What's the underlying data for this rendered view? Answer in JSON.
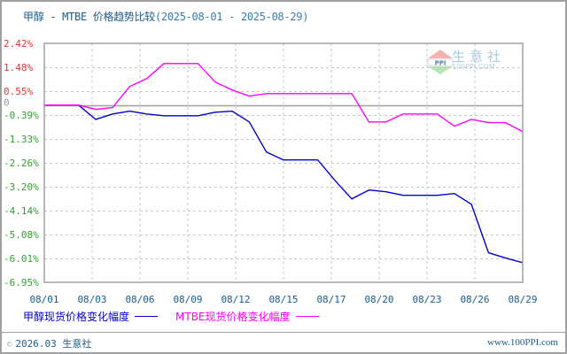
{
  "title": {
    "main": "甲醇 - MTBE 价格趋势比较",
    "range": "(2025-08-01 - 2025-08-29)"
  },
  "watermark": {
    "brand": "生意社",
    "sub": "100PPI.COM",
    "logo_text": "PPI"
  },
  "legend": {
    "items": [
      {
        "label": "甲醇现货价格变化幅度",
        "color": "#0000cc"
      },
      {
        "label": "MTBE现货价格变化幅度",
        "color": "#ff00ff"
      }
    ]
  },
  "footer": {
    "copyright_symbol": "©",
    "left": "2026.03 生意社",
    "right": "www.100PPI.com"
  },
  "colors": {
    "positive_tick": "#e83030",
    "negative_tick": "#30a030",
    "zero_tick": "#999999",
    "grid": "#c8c8c8",
    "axis": "#a0a0a0",
    "series_methanol": "#0000cc",
    "series_mtbe": "#ff00ff"
  },
  "chart_data": {
    "type": "line",
    "title": "甲醇 - MTBE 价格趋势比较(2025-08-01 - 2025-08-29)",
    "xlabel": "",
    "ylabel": "",
    "ylim": [
      -6.95,
      2.42
    ],
    "grid": true,
    "legend_position": "bottom",
    "y_ticks": [
      "2.42%",
      "1.48%",
      "0.55%",
      "0",
      "-0.39%",
      "-1.33%",
      "-2.26%",
      "-3.20%",
      "-4.14%",
      "-5.08%",
      "-6.01%",
      "-6.95%"
    ],
    "y_tick_values": [
      2.42,
      1.48,
      0.55,
      0,
      -0.39,
      -1.33,
      -2.26,
      -3.2,
      -4.14,
      -5.08,
      -6.01,
      -6.95
    ],
    "x_ticks": [
      "08/01",
      "08/03",
      "08/06",
      "08/09",
      "08/12",
      "08/15",
      "08/17",
      "08/20",
      "08/23",
      "08/26",
      "08/29"
    ],
    "x": [
      "08/01",
      "08/02",
      "08/03",
      "08/04",
      "08/05",
      "08/06",
      "08/07",
      "08/08",
      "08/09",
      "08/10",
      "08/11",
      "08/12",
      "08/13",
      "08/14",
      "08/15",
      "08/16",
      "08/17",
      "08/18",
      "08/19",
      "08/20",
      "08/21",
      "08/22",
      "08/23",
      "08/24",
      "08/25",
      "08/26",
      "08/27",
      "08/28",
      "08/29"
    ],
    "series": [
      {
        "name": "甲醇现货价格变化幅度",
        "color": "#0000cc",
        "values": [
          0,
          0,
          0,
          -0.56,
          -0.35,
          -0.24,
          -0.35,
          -0.42,
          -0.42,
          -0.42,
          -0.28,
          -0.24,
          -0.66,
          -1.84,
          -2.15,
          -2.15,
          -2.15,
          -2.95,
          -3.68,
          -3.33,
          -3.4,
          -3.54,
          -3.54,
          -3.54,
          -3.47,
          -3.89,
          -5.79,
          -6.0,
          -6.18
        ]
      },
      {
        "name": "MTBE现货价格变化幅度",
        "color": "#ff00ff",
        "values": [
          0,
          0,
          0,
          -0.17,
          -0.1,
          0.73,
          1.04,
          1.63,
          1.63,
          1.63,
          0.9,
          0.59,
          0.35,
          0.45,
          0.45,
          0.45,
          0.45,
          0.45,
          0.45,
          -0.66,
          -0.66,
          -0.35,
          -0.35,
          -0.35,
          -0.83,
          -0.56,
          -0.69,
          -0.69,
          -1.04
        ]
      }
    ]
  }
}
